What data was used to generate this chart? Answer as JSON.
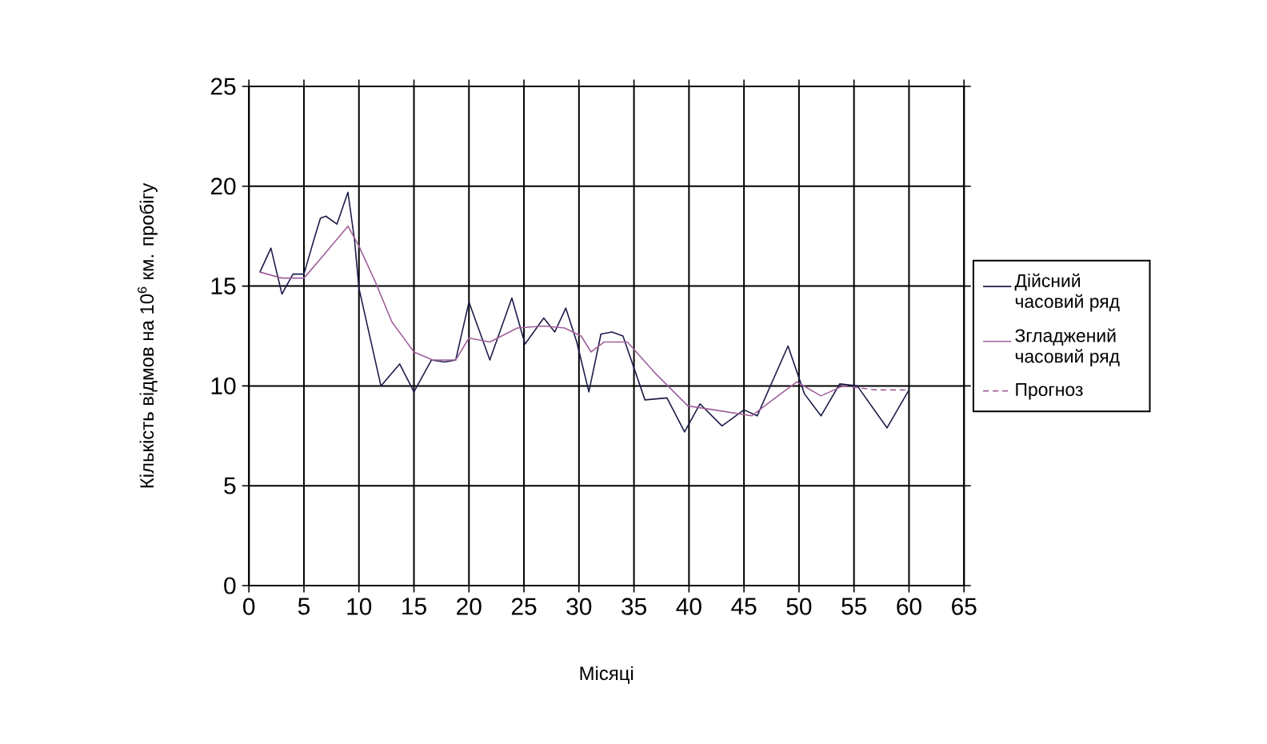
{
  "chart_data": {
    "type": "line",
    "xlabel": "Місяці",
    "ylabel": "Кількість відмов на 10$^{6}$ км. пробігу",
    "xlim": [
      0,
      65
    ],
    "xticks": [
      0,
      5,
      10,
      15,
      20,
      25,
      30,
      35,
      40,
      45,
      50,
      55,
      60,
      65
    ],
    "ylim": [
      0,
      25
    ],
    "yticks": [
      0,
      5,
      10,
      15,
      20,
      25
    ],
    "grid": true,
    "legend": "right",
    "marker": "none",
    "series": [
      {
        "name": "Дійсний часовий ряд",
        "color": "#1c1c4a",
        "line_style": "solid",
        "x": [
          1,
          2,
          3,
          4,
          5,
          6,
          6.5,
          7,
          8,
          9,
          9.6,
          10,
          12,
          13.7,
          15,
          16.6,
          17.8,
          18.8,
          20,
          21.9,
          23.9,
          25.1,
          26.8,
          27.8,
          28.8,
          29.8,
          30.9,
          32,
          33,
          34,
          36,
          38,
          39.6,
          41,
          43,
          45,
          46.2,
          49,
          50.5,
          52,
          53.7,
          55.3,
          58,
          60
        ],
        "values": [
          15.7,
          16.9,
          14.6,
          15.6,
          15.6,
          17.5,
          18.4,
          18.5,
          18.1,
          19.7,
          17.3,
          14.9,
          10.0,
          11.1,
          9.7,
          11.3,
          11.2,
          11.3,
          14.2,
          11.3,
          14.4,
          12.1,
          13.4,
          12.7,
          13.9,
          12.2,
          9.7,
          12.6,
          12.7,
          12.5,
          9.3,
          9.4,
          7.7,
          9.1,
          8.0,
          8.8,
          8.5,
          12.0,
          9.6,
          8.5,
          10.1,
          10.0,
          7.9,
          9.8
        ]
      },
      {
        "name": "Згладжений часовий ряд",
        "color": "#a0609a",
        "line_style": "solid",
        "x": [
          1,
          3,
          5,
          6.4,
          9,
          10,
          11.5,
          13,
          15,
          16.7,
          18.8,
          20,
          21.9,
          24.4,
          26.8,
          28.7,
          30.2,
          31.1,
          32.3,
          34.4,
          37,
          39.9,
          42.3,
          45.7,
          47.6,
          49.8,
          52,
          54
        ],
        "values": [
          15.7,
          15.4,
          15.4,
          16.3,
          18.0,
          17.0,
          15.2,
          13.2,
          11.7,
          11.3,
          11.3,
          12.4,
          12.2,
          12.9,
          13.0,
          12.9,
          12.5,
          11.7,
          12.2,
          12.2,
          10.6,
          9.0,
          8.8,
          8.5,
          9.3,
          10.2,
          9.5,
          10.0
        ]
      },
      {
        "name": "Прогноз",
        "color": "#a0609a",
        "line_style": "dashed",
        "x": [
          54,
          57,
          60
        ],
        "values": [
          10.0,
          9.8,
          9.8
        ]
      }
    ]
  }
}
